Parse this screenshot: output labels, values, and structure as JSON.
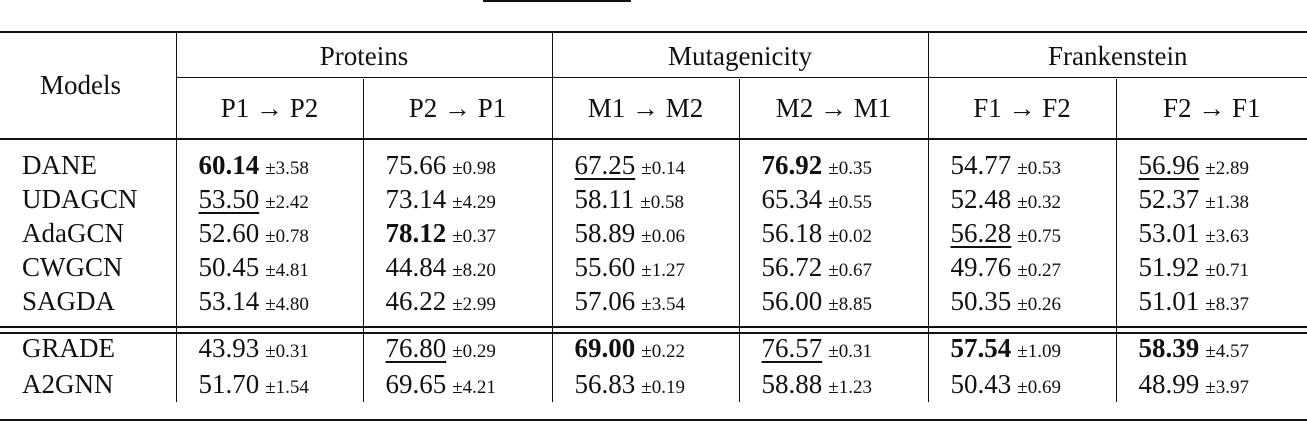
{
  "header": {
    "models_label": "Models",
    "groups": [
      "Proteins",
      "Mutagenicity",
      "Frankenstein"
    ],
    "subcols": [
      "P1 → P2",
      "P2 → P1",
      "M1 → M2",
      "M2 → M1",
      "F1 → F2",
      "F2 → F1"
    ]
  },
  "rows_group1": [
    {
      "name": "DANE",
      "cells": [
        {
          "v": "60.14",
          "s": "±3.58",
          "style": "bold"
        },
        {
          "v": "75.66",
          "s": "±0.98",
          "style": ""
        },
        {
          "v": "67.25",
          "s": "±0.14",
          "style": "underline"
        },
        {
          "v": "76.92",
          "s": "±0.35",
          "style": "bold"
        },
        {
          "v": "54.77",
          "s": "±0.53",
          "style": ""
        },
        {
          "v": "56.96",
          "s": "±2.89",
          "style": "underline"
        }
      ]
    },
    {
      "name": "UDAGCN",
      "cells": [
        {
          "v": "53.50",
          "s": "±2.42",
          "style": "underline"
        },
        {
          "v": "73.14",
          "s": "±4.29",
          "style": ""
        },
        {
          "v": "58.11",
          "s": "±0.58",
          "style": ""
        },
        {
          "v": "65.34",
          "s": "±0.55",
          "style": ""
        },
        {
          "v": "52.48",
          "s": "±0.32",
          "style": ""
        },
        {
          "v": "52.37",
          "s": "±1.38",
          "style": ""
        }
      ]
    },
    {
      "name": "AdaGCN",
      "cells": [
        {
          "v": "52.60",
          "s": "±0.78",
          "style": ""
        },
        {
          "v": "78.12",
          "s": "±0.37",
          "style": "bold"
        },
        {
          "v": "58.89",
          "s": "±0.06",
          "style": ""
        },
        {
          "v": "56.18",
          "s": "±0.02",
          "style": ""
        },
        {
          "v": "56.28",
          "s": "±0.75",
          "style": "underline"
        },
        {
          "v": "53.01",
          "s": "±3.63",
          "style": ""
        }
      ]
    },
    {
      "name": "CWGCN",
      "cells": [
        {
          "v": "50.45",
          "s": "±4.81",
          "style": ""
        },
        {
          "v": "44.84",
          "s": "±8.20",
          "style": ""
        },
        {
          "v": "55.60",
          "s": "±1.27",
          "style": ""
        },
        {
          "v": "56.72",
          "s": "±0.67",
          "style": ""
        },
        {
          "v": "49.76",
          "s": "±0.27",
          "style": ""
        },
        {
          "v": "51.92",
          "s": "±0.71",
          "style": ""
        }
      ]
    },
    {
      "name": "SAGDA",
      "cells": [
        {
          "v": "53.14",
          "s": "±4.80",
          "style": ""
        },
        {
          "v": "46.22",
          "s": "±2.99",
          "style": ""
        },
        {
          "v": "57.06",
          "s": "±3.54",
          "style": ""
        },
        {
          "v": "56.00",
          "s": "±8.85",
          "style": ""
        },
        {
          "v": "50.35",
          "s": "±0.26",
          "style": ""
        },
        {
          "v": "51.01",
          "s": "±8.37",
          "style": ""
        }
      ]
    }
  ],
  "rows_group2": [
    {
      "name": "GRADE",
      "cells": [
        {
          "v": "43.93",
          "s": "±0.31",
          "style": ""
        },
        {
          "v": "76.80",
          "s": "±0.29",
          "style": "underline"
        },
        {
          "v": "69.00",
          "s": "±0.22",
          "style": "bold"
        },
        {
          "v": "76.57",
          "s": "±0.31",
          "style": "underline"
        },
        {
          "v": "57.54",
          "s": "±1.09",
          "style": "bold"
        },
        {
          "v": "58.39",
          "s": "±4.57",
          "style": "bold"
        }
      ]
    },
    {
      "name": "A2GNN",
      "cells": [
        {
          "v": "51.70",
          "s": "±1.54",
          "style": ""
        },
        {
          "v": "69.65",
          "s": "±4.21",
          "style": ""
        },
        {
          "v": "56.83",
          "s": "±0.19",
          "style": ""
        },
        {
          "v": "58.88",
          "s": "±1.23",
          "style": ""
        },
        {
          "v": "50.43",
          "s": "±0.69",
          "style": ""
        },
        {
          "v": "48.99",
          "s": "±3.97",
          "style": ""
        }
      ]
    }
  ]
}
